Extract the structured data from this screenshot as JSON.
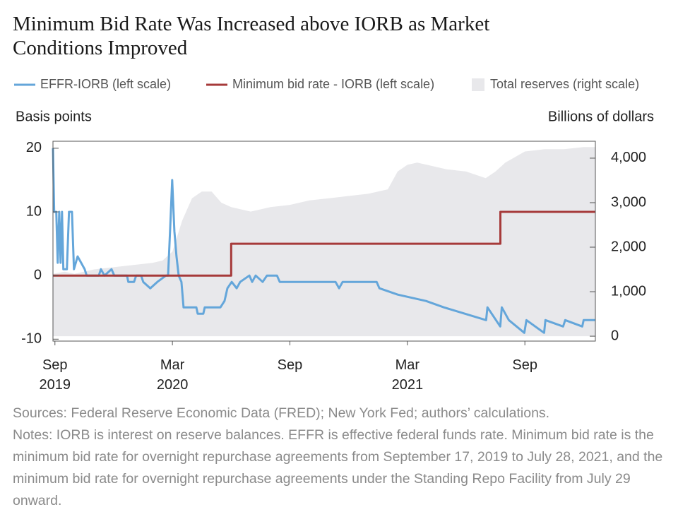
{
  "chart_data": {
    "type": "line",
    "title": "Minimum Bid Rate Was Increased above IORB as Market Conditions Improved",
    "y_label": "Basis points",
    "y2_label": "Billions of dollars",
    "xlim": [
      -0.1,
      27.6
    ],
    "xticks": [
      {
        "value": 0,
        "label": "Sep 2019"
      },
      {
        "value": 6,
        "label": "Mar 2020"
      },
      {
        "value": 12,
        "label": "Sep"
      },
      {
        "value": 18,
        "label": "Mar 2021"
      },
      {
        "value": 24,
        "label": "Sep"
      }
    ],
    "ylim": [
      -10.3,
      21.1
    ],
    "yticks": [
      -10,
      0,
      10,
      20
    ],
    "y2lim": [
      -110,
      4380
    ],
    "y2ticks": [
      0,
      {
        "value": 1000,
        "label": "1,000"
      },
      {
        "value": 2000,
        "label": "2,000"
      },
      {
        "value": 3000,
        "label": "3,000"
      },
      {
        "value": 4000,
        "label": "4,000"
      }
    ],
    "series": [
      {
        "name": "EFFR-IORB (left scale)",
        "color": "#64a6da",
        "type": "line",
        "x": [
          -0.1,
          -0.04,
          0.07,
          0.14,
          0.22,
          0.29,
          0.36,
          0.43,
          0.61,
          0.72,
          0.87,
          0.97,
          1.16,
          1.34,
          1.52,
          1.62,
          2.24,
          2.35,
          2.53,
          2.89,
          3.03,
          3.68,
          3.75,
          4.04,
          4.15,
          4.4,
          4.51,
          4.87,
          5.23,
          5.67,
          5.78,
          5.88,
          5.99,
          6.1,
          6.21,
          6.32,
          6.46,
          6.57,
          7.22,
          7.29,
          7.58,
          7.65,
          8.45,
          8.66,
          8.81,
          9.03,
          9.28,
          9.46,
          9.93,
          10.07,
          10.25,
          10.61,
          10.83,
          11.34,
          11.48,
          14.33,
          14.51,
          14.69,
          16.43,
          16.57,
          17.51,
          18.95,
          19.86,
          22.02,
          22.09,
          22.74,
          22.82,
          23.18,
          23.97,
          24.08,
          24.98,
          25.05,
          25.95,
          26.06,
          26.93,
          27.0,
          27.6
        ],
        "values": [
          20,
          10,
          10,
          2,
          10,
          2,
          10,
          1,
          1,
          10,
          10,
          1,
          3,
          2,
          1,
          0,
          0,
          1,
          0,
          1,
          0,
          0,
          -1,
          -1,
          0,
          0,
          -1,
          -2,
          -1,
          0,
          0,
          7,
          15,
          7,
          3,
          0,
          -1,
          -5,
          -5,
          -6,
          -6,
          -5,
          -5,
          -4,
          -2,
          -1,
          -2,
          -1,
          0,
          -1,
          0,
          -1,
          0,
          0,
          -1,
          -1,
          -2,
          -1,
          -1,
          -2,
          -3,
          -4,
          -5,
          -7,
          -5,
          -8,
          -5,
          -7,
          -9,
          -7,
          -9,
          -7,
          -8,
          -7,
          -8,
          -7,
          -7
        ]
      },
      {
        "name": "Minimum bid rate - IORB (left scale)",
        "color": "#a63a3a",
        "type": "line",
        "x": [
          -0.1,
          9.0,
          9.0,
          22.75,
          22.75,
          27.6
        ],
        "values": [
          0,
          0,
          5,
          5,
          10,
          10
        ]
      },
      {
        "name": "Total reserves (right scale)",
        "color": "#e8e8eb",
        "type": "area",
        "axis": "y2",
        "x": [
          -0.1,
          0.5,
          1,
          2,
          3,
          4,
          5,
          5.5,
          6,
          6.5,
          7,
          7.5,
          8,
          8.5,
          9,
          10,
          11,
          12,
          13,
          14,
          15,
          16,
          17,
          17.5,
          18,
          18.5,
          19,
          20,
          21,
          22,
          22.5,
          23,
          24,
          25,
          26,
          27,
          27.6
        ],
        "values": [
          1400,
          1450,
          1400,
          1500,
          1550,
          1600,
          1650,
          1700,
          1900,
          2600,
          3100,
          3250,
          3250,
          3000,
          2900,
          2800,
          2900,
          2950,
          3050,
          3100,
          3150,
          3200,
          3300,
          3700,
          3850,
          3900,
          3850,
          3750,
          3700,
          3550,
          3700,
          3900,
          4150,
          4200,
          4200,
          4250,
          4250
        ]
      }
    ],
    "sources": "Sources: Federal Reserve Economic Data (FRED); New York Fed; authors’ calculations.",
    "notes": "Notes: IORB is interest on reserve balances. EFFR is effective federal funds rate. Minimum bid rate is the minimum bid rate for overnight repurchase agreements from September 17, 2019 to July 28, 2021, and the minimum bid rate for overnight repurchase agreements under the Standing Repo Facility from July 29 onward."
  }
}
